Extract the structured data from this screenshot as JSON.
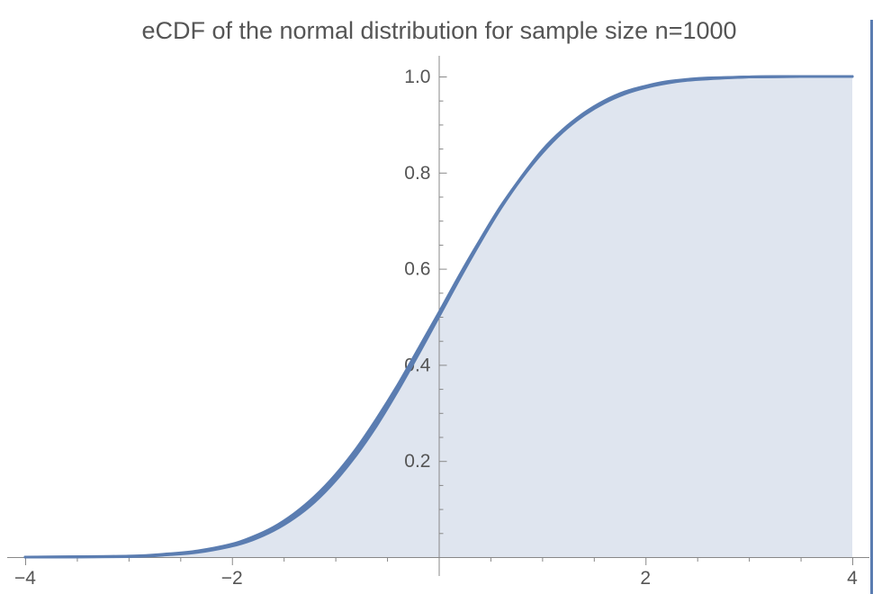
{
  "chart_data": {
    "type": "area",
    "title": "eCDF of the normal distribution for sample size n=1000",
    "xlabel": "",
    "ylabel": "",
    "xlim": [
      -4,
      4
    ],
    "ylim": [
      0,
      1.0
    ],
    "x_ticks": [
      -4,
      -2,
      2,
      4
    ],
    "x_tick_labels": [
      "−4",
      "−2",
      "2",
      "4"
    ],
    "y_ticks": [
      0.2,
      0.4,
      0.6,
      0.8,
      1.0
    ],
    "y_tick_labels": [
      "0.2",
      "0.4",
      "0.6",
      "0.8",
      "1.0"
    ],
    "grid": false,
    "colors": {
      "line": "#5b7db1",
      "fill": "#dfe5ef",
      "axis": "#888888",
      "text": "#555555"
    },
    "series": [
      {
        "x": [
          -4.0,
          -3.0,
          -2.6,
          -2.33,
          -2.0,
          -1.8,
          -1.6,
          -1.4,
          -1.2,
          -1.0,
          -0.8,
          -0.6,
          -0.4,
          -0.2,
          0.0,
          0.2,
          0.4,
          0.6,
          0.8,
          1.0,
          1.2,
          1.4,
          1.6,
          1.8,
          2.0,
          2.2,
          2.4,
          2.6,
          3.0,
          3.5,
          4.0
        ],
        "y": [
          0.0,
          0.001,
          0.005,
          0.01,
          0.023,
          0.036,
          0.055,
          0.081,
          0.115,
          0.159,
          0.212,
          0.274,
          0.345,
          0.421,
          0.5,
          0.579,
          0.655,
          0.726,
          0.788,
          0.841,
          0.885,
          0.919,
          0.945,
          0.964,
          0.977,
          0.986,
          0.992,
          0.995,
          0.999,
          1.0,
          1.0
        ]
      },
      {
        "x": [
          -4.0,
          -3.0,
          -2.6,
          -2.33,
          -2.0,
          -1.8,
          -1.6,
          -1.4,
          -1.2,
          -1.0,
          -0.8,
          -0.6,
          -0.4,
          -0.2,
          0.0,
          0.2,
          0.4,
          0.6,
          0.8,
          1.0,
          1.2,
          1.4,
          1.6,
          1.8,
          2.0,
          2.2,
          2.4,
          2.6,
          3.0,
          3.5,
          4.0
        ],
        "y": [
          0.0,
          0.002,
          0.007,
          0.013,
          0.027,
          0.042,
          0.062,
          0.09,
          0.126,
          0.171,
          0.225,
          0.288,
          0.357,
          0.432,
          0.508,
          0.586,
          0.66,
          0.73,
          0.79,
          0.845,
          0.887,
          0.921,
          0.947,
          0.966,
          0.979,
          0.988,
          0.993,
          0.996,
          0.999,
          1.0,
          1.0
        ]
      },
      {
        "x": [
          -4.0,
          -3.0,
          -2.6,
          -2.33,
          -2.0,
          -1.8,
          -1.6,
          -1.4,
          -1.2,
          -1.0,
          -0.8,
          -0.6,
          -0.4,
          -0.2,
          0.0,
          0.2,
          0.4,
          0.6,
          0.8,
          1.0,
          1.2,
          1.4,
          1.6,
          1.8,
          2.0,
          2.2,
          2.4,
          2.6,
          3.0,
          3.5,
          4.0
        ],
        "y": [
          0.0,
          0.0015,
          0.006,
          0.012,
          0.025,
          0.039,
          0.058,
          0.086,
          0.121,
          0.166,
          0.219,
          0.281,
          0.351,
          0.427,
          0.504,
          0.583,
          0.658,
          0.729,
          0.791,
          0.846,
          0.889,
          0.923,
          0.949,
          0.968,
          0.98,
          0.989,
          0.994,
          0.997,
          0.999,
          1.0,
          1.0
        ]
      }
    ]
  }
}
